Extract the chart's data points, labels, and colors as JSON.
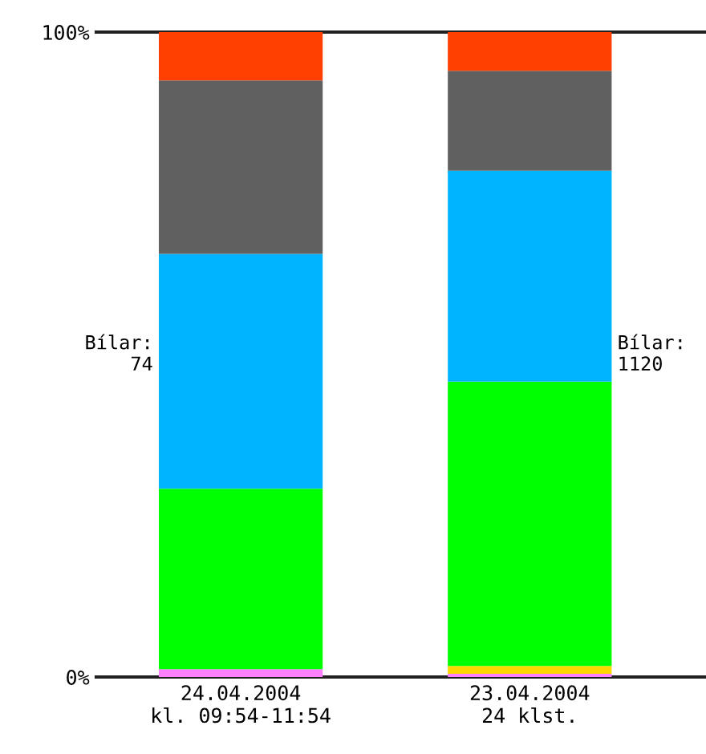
{
  "chart_data": {
    "type": "bar",
    "stacked": true,
    "categories": [
      "24.04.2004\nkl. 09:54-11:54",
      "23.04.2004\n24 klst."
    ],
    "series": [
      {
        "color": "#ff80ff",
        "values": [
          1.2,
          0.5
        ]
      },
      {
        "color": "#ffd700",
        "values": [
          0,
          1.2
        ]
      },
      {
        "color": "#00ff00",
        "values": [
          28.0,
          44.1
        ]
      },
      {
        "color": "#00b4ff",
        "values": [
          36.4,
          32.7
        ]
      },
      {
        "color": "#606060",
        "values": [
          26.9,
          15.5
        ]
      },
      {
        "color": "#ff4000",
        "values": [
          7.5,
          6.0
        ]
      }
    ],
    "ylim": [
      0,
      100
    ],
    "yticks": [
      {
        "value": 0,
        "label": "0%"
      },
      {
        "value": 100,
        "label": "100%"
      }
    ],
    "annotations": [
      "Bílar:\n74",
      "Bílar:\n1120"
    ],
    "legend": false
  }
}
